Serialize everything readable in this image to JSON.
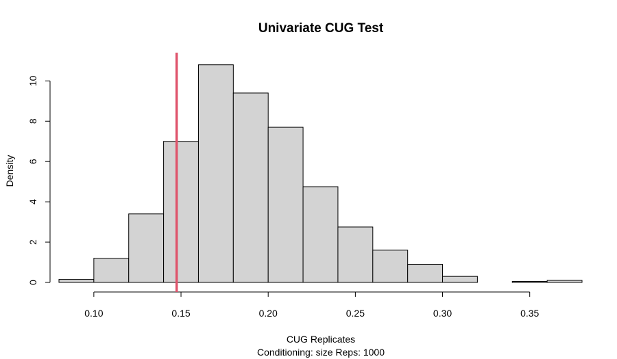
{
  "chart_data": {
    "type": "bar",
    "title": "Univariate CUG Test",
    "xlabel": "CUG Replicates",
    "subtitle": "Conditioning: size Reps: 1000",
    "ylabel": "Density",
    "bin_edges": [
      0.08,
      0.1,
      0.12,
      0.14,
      0.16,
      0.18,
      0.2,
      0.22,
      0.24,
      0.26,
      0.28,
      0.3,
      0.32,
      0.34,
      0.36,
      0.38
    ],
    "values": [
      0.15,
      1.2,
      3.4,
      7.0,
      10.8,
      9.4,
      7.7,
      4.75,
      2.75,
      1.6,
      0.9,
      0.3,
      0.0,
      0.05,
      0.1
    ],
    "xlim": [
      0.08,
      0.38
    ],
    "ylim": [
      0,
      11.3
    ],
    "x_ticks": [
      0.1,
      0.15,
      0.2,
      0.25,
      0.3,
      0.35
    ],
    "x_tick_labels": [
      "0.10",
      "0.15",
      "0.20",
      "0.25",
      "0.30",
      "0.35"
    ],
    "y_ticks": [
      0,
      2,
      4,
      6,
      8,
      10
    ],
    "y_tick_labels": [
      "0",
      "2",
      "4",
      "6",
      "8",
      "10"
    ],
    "observed_line": {
      "x": 0.1475,
      "color": "#DF536B"
    },
    "bar_color": "#D3D3D3",
    "bar_edge_color": "#000000",
    "grid": false
  }
}
